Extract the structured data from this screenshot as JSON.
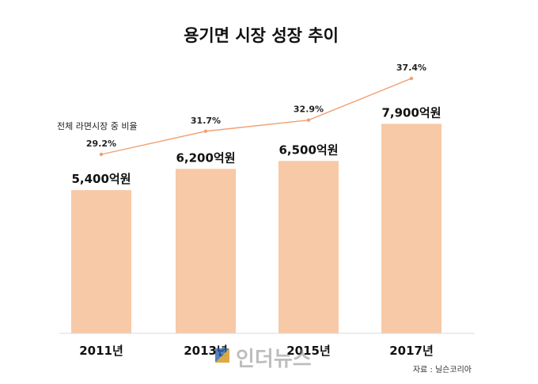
{
  "chart_data": {
    "type": "bar",
    "title": "용기면 시장 성장 추이",
    "categories": [
      "2011년",
      "2013년",
      "2015년",
      "2017년"
    ],
    "series": [
      {
        "type": "bar",
        "values": [
          5400,
          6200,
          6500,
          7900
        ],
        "value_labels": [
          "5,400억원",
          "6,200억원",
          "6,500억원",
          "7,900억원"
        ],
        "color": "#f7c9a6"
      },
      {
        "type": "line",
        "name": "전체 라면시장 중 비율",
        "values": [
          29.2,
          31.7,
          32.9,
          37.4
        ],
        "value_labels": [
          "29.2%",
          "31.7%",
          "32.9%",
          "37.4%"
        ],
        "color": "#f0a070"
      }
    ],
    "grid": false,
    "source": "자료 : 닐슨코리아"
  },
  "watermark": {
    "text": "인더뉴스",
    "colors": [
      "#1e5aa8",
      "#f2b233"
    ]
  }
}
